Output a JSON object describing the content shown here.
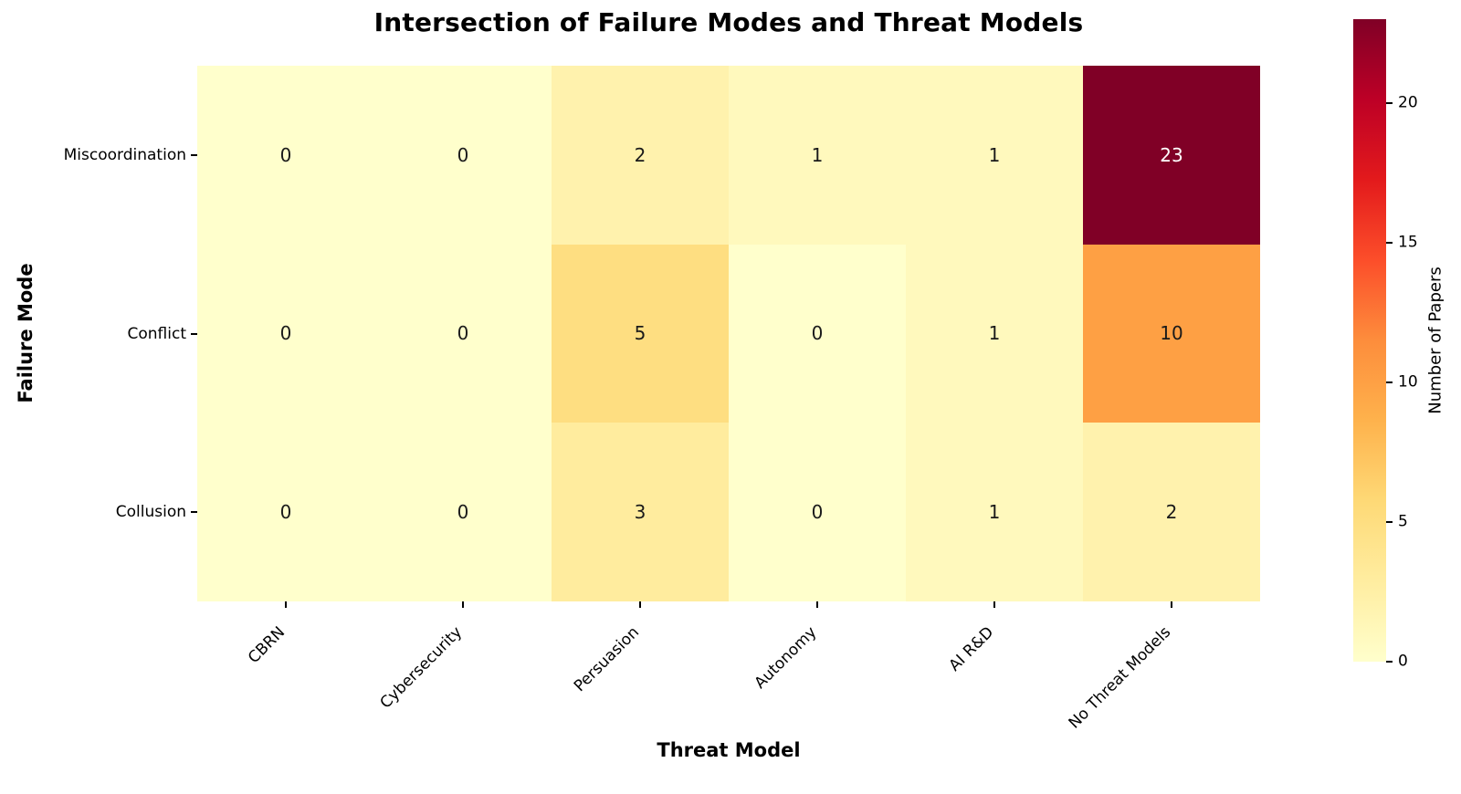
{
  "figure": {
    "background": "#ffffff"
  },
  "chart_data": {
    "type": "heatmap",
    "title": "Intersection of Failure Modes and Threat Models",
    "xlabel": "Threat Model",
    "ylabel": "Failure Mode",
    "colorbar_label": "Number of Papers",
    "rows": [
      "Miscoordination",
      "Conflict",
      "Collusion"
    ],
    "columns": [
      "CBRN",
      "Cybersecurity",
      "Persuasion",
      "Autonomy",
      "AI R&D",
      "No Threat Models"
    ],
    "values": [
      [
        0,
        0,
        2,
        1,
        1,
        23
      ],
      [
        0,
        0,
        5,
        0,
        1,
        10
      ],
      [
        0,
        0,
        3,
        0,
        1,
        2
      ]
    ],
    "vmin": 0,
    "vmax": 23,
    "colormap": "YlOrRd",
    "colormap_stops": [
      "#ffffcc",
      "#ffeda0",
      "#fed976",
      "#feb24c",
      "#fd8d3c",
      "#fc4e2a",
      "#e31a1c",
      "#bd0026",
      "#800026"
    ],
    "colorbar_ticks": [
      0,
      5,
      10,
      15,
      20
    ],
    "annotation_text_colors": {
      "dark": "#1a1a1a",
      "light": "#ffffff"
    },
    "axis_color": "#000000",
    "legend_position": "right-colorbar",
    "grid": false
  }
}
